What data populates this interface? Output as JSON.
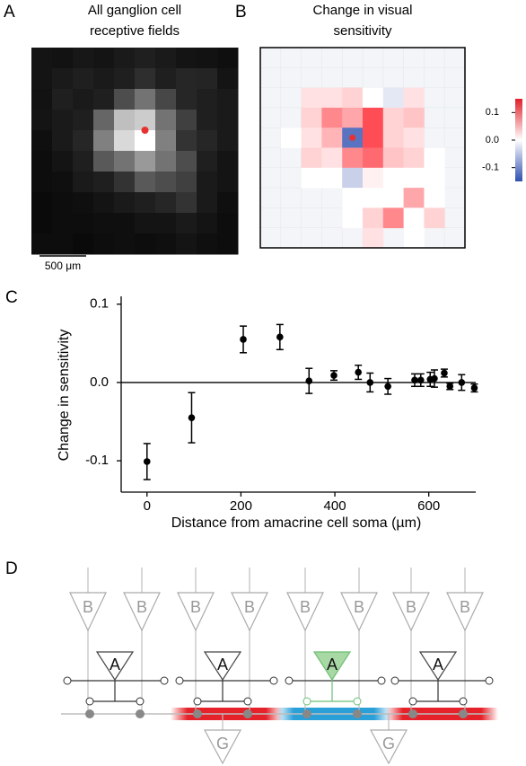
{
  "chart_data": [
    {
      "type": "heatmap",
      "panel_label": "A",
      "title": [
        "All ganglion cell",
        "receptive fields"
      ],
      "scale_bar_label": "500 μm",
      "values": [
        [
          0.08,
          0.07,
          0.09,
          0.08,
          0.1,
          0.12,
          0.1,
          0.08,
          0.07,
          0.06
        ],
        [
          0.08,
          0.1,
          0.12,
          0.1,
          0.12,
          0.18,
          0.12,
          0.15,
          0.14,
          0.08
        ],
        [
          0.07,
          0.12,
          0.1,
          0.12,
          0.3,
          0.45,
          0.28,
          0.15,
          0.12,
          0.1
        ],
        [
          0.08,
          0.1,
          0.12,
          0.4,
          0.75,
          0.8,
          0.45,
          0.25,
          0.12,
          0.1
        ],
        [
          0.06,
          0.1,
          0.15,
          0.5,
          0.85,
          1.0,
          0.5,
          0.2,
          0.15,
          0.1
        ],
        [
          0.05,
          0.08,
          0.12,
          0.35,
          0.45,
          0.6,
          0.45,
          0.3,
          0.12,
          0.08
        ],
        [
          0.05,
          0.06,
          0.1,
          0.12,
          0.2,
          0.35,
          0.3,
          0.25,
          0.1,
          0.08
        ],
        [
          0.04,
          0.05,
          0.06,
          0.08,
          0.1,
          0.12,
          0.15,
          0.2,
          0.1,
          0.06
        ],
        [
          0.04,
          0.05,
          0.05,
          0.06,
          0.06,
          0.08,
          0.08,
          0.1,
          0.08,
          0.05
        ],
        [
          0.05,
          0.05,
          0.04,
          0.05,
          0.06,
          0.05,
          0.06,
          0.08,
          0.06,
          0.05
        ]
      ]
    },
    {
      "type": "heatmap",
      "panel_label": "B",
      "title": [
        "Change in visual",
        "sensitivity"
      ],
      "clim": [
        -0.15,
        0.15
      ],
      "colorbar_ticks": [
        0.1,
        {
          "value": 0,
          "label": "0.0"
        },
        -0.1
      ],
      "values": [
        [
          null,
          null,
          null,
          null,
          null,
          null,
          null,
          null,
          null,
          null
        ],
        [
          null,
          null,
          null,
          null,
          null,
          null,
          null,
          null,
          null,
          null
        ],
        [
          null,
          null,
          0.02,
          0.02,
          0.03,
          0,
          -0.02,
          0.02,
          null,
          null
        ],
        [
          null,
          null,
          0.03,
          0.08,
          0.06,
          0.12,
          0.03,
          0.04,
          null,
          null
        ],
        [
          null,
          0,
          0.02,
          0.05,
          -0.12,
          0.12,
          0.03,
          0.02,
          null,
          null
        ],
        [
          null,
          null,
          0.03,
          0.02,
          0.08,
          0.1,
          0.04,
          0.03,
          0,
          null
        ],
        [
          null,
          null,
          0,
          0,
          -0.04,
          0.01,
          0,
          0,
          0,
          null
        ],
        [
          null,
          null,
          null,
          null,
          0,
          0,
          0,
          0.06,
          0,
          null
        ],
        [
          null,
          null,
          null,
          null,
          0,
          0.03,
          0.08,
          0,
          0.03,
          null
        ],
        [
          null,
          null,
          null,
          null,
          null,
          0.02,
          null,
          0,
          null,
          null
        ]
      ]
    },
    {
      "type": "errorbar",
      "panel_label": "C",
      "xlabel": "Distance from amacrine cell soma (µm)",
      "ylabel": "Change in sensitivity",
      "x": [
        0,
        95,
        205,
        283,
        345,
        398,
        450,
        475,
        513,
        570,
        583,
        603,
        612,
        633,
        645,
        670,
        697
      ],
      "values": [
        -0.101,
        -0.045,
        0.055,
        0.058,
        0.002,
        0.009,
        0.013,
        0.0,
        -0.005,
        0.003,
        0.003,
        0.004,
        0.005,
        0.012,
        -0.005,
        0.0,
        -0.007
      ],
      "errors": [
        0.023,
        0.032,
        0.017,
        0.016,
        0.016,
        0.006,
        0.009,
        0.012,
        0.01,
        0.008,
        0.008,
        0.009,
        0.011,
        0.005,
        0.004,
        0.01,
        0.005
      ],
      "xlim": [
        -55,
        700
      ],
      "ylim": [
        -0.14,
        0.11
      ],
      "xticks": [
        0,
        200,
        400,
        600
      ],
      "yticks": [
        0.1,
        {
          "value": 0,
          "label": "0.0"
        },
        -0.1
      ],
      "color": "#000000"
    }
  ],
  "diagram": {
    "panel_label": "D",
    "bipolar_labels": [
      "B",
      "B",
      "B",
      "B",
      "B",
      "B",
      "B",
      "B"
    ],
    "amacrine_labels": [
      "A",
      "A",
      "A",
      "A"
    ],
    "ganglion_labels": [
      "G",
      "G"
    ]
  }
}
